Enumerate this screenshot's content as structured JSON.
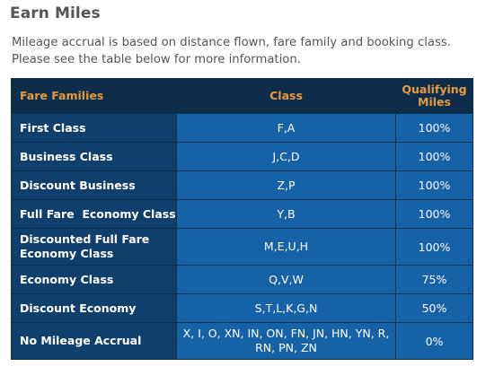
{
  "heading": "Earn Miles",
  "description_lines": [
    "Mileage accrual is based on distance flown, fare family and booking class.",
    "Please see the table below for more information."
  ],
  "table": {
    "headers": {
      "fare_families": "Fare Families",
      "class": "Class",
      "qualifying_miles": "Qualifying Miles"
    },
    "rows": [
      {
        "family": "First Class",
        "class": "F,A",
        "miles": "100%"
      },
      {
        "family": "Business Class",
        "class": "J,C,D",
        "miles": "100%"
      },
      {
        "family": "Discount Business",
        "class": "Z,P",
        "miles": "100%"
      },
      {
        "family": "Full Fare  Economy Class",
        "class": "Y,B",
        "miles": "100%"
      },
      {
        "family": "Discounted Full Fare Economy Class",
        "class": "M,E,U,H",
        "miles": "100%"
      },
      {
        "family": "Economy Class",
        "class": "Q,V,W",
        "miles": "75%"
      },
      {
        "family": "Discount Economy",
        "class": "S,T,L,K,G,N",
        "miles": "50%"
      },
      {
        "family": "No Mileage Accrual",
        "class": "X, I, O, XN, IN, ON, FN, JN, HN, YN, R, RN, PN, ZN",
        "miles": "0%"
      }
    ]
  },
  "colors": {
    "header_bg": "#0d2d4b",
    "header_text": "#e79b3f",
    "family_cell_bg": "#0f3f6a",
    "value_cell_bg": "#1562a6",
    "body_text": "#555555"
  }
}
